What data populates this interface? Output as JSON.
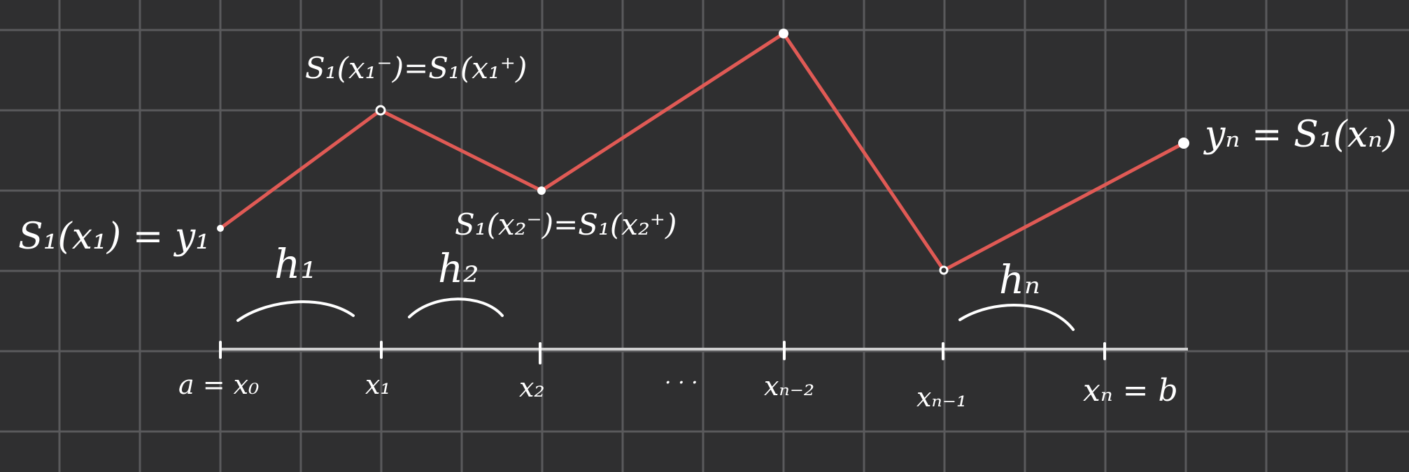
{
  "diagram": {
    "colors": {
      "background": "#2f2f30",
      "grid": "#5a5a5c",
      "axis": "#cfcfcf",
      "spline": "#e05a55",
      "ink": "#ffffff"
    },
    "axis_labels": {
      "x0": "a = x₀",
      "x1": "x₁",
      "x2": "x₂",
      "dots": "· · ·",
      "xn2": "xₙ₋₂",
      "xn1": "xₙ₋₁",
      "xn": "xₙ = b"
    },
    "interval_labels": {
      "h1": "h₁",
      "h2": "h₂",
      "hn": "hₙ"
    },
    "point_annotations": {
      "start": "S₁(x₁) = y₁",
      "p1": "S₁(x₁⁻)=S₁(x₁⁺)",
      "p2": "S₁(x₂⁻)=S₁(x₂⁺)",
      "end": "yₙ = S₁(xₙ)"
    }
  }
}
